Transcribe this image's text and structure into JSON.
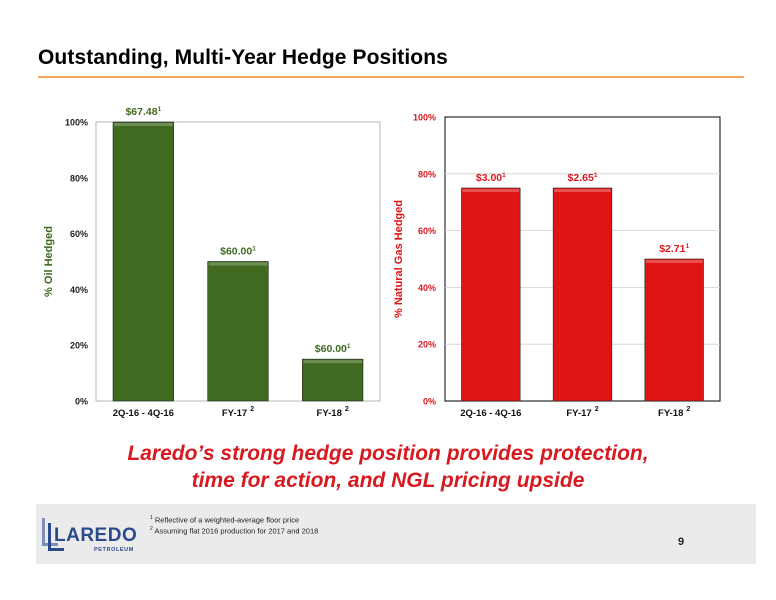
{
  "title": "Outstanding, Multi-Year Hedge Positions",
  "tagline": {
    "line1": "Laredo’s strong hedge position provides protection,",
    "line2": "time for action, and NGL pricing upside"
  },
  "footnotes": [
    {
      "mark": "1",
      "text": "Reflective of a weighted-average floor price"
    },
    {
      "mark": "2",
      "text": "Assuming flat 2016 production for 2017 and 2018"
    }
  ],
  "page_number": "9",
  "logo": {
    "name": "LAREDO",
    "sub": "PETROLEUM"
  },
  "colors": {
    "oil": "#3f6a1f",
    "gas": "#e01414",
    "accent_rule": "#f5a65b",
    "tagline": "#d71920"
  },
  "chart_data": [
    {
      "type": "bar",
      "ylabel": "% Oil Hedged",
      "ylim": [
        0,
        100
      ],
      "yticks": [
        "0%",
        "20%",
        "40%",
        "60%",
        "80%",
        "100%"
      ],
      "categories": [
        "2Q-16 - 4Q-16",
        "FY-17",
        "FY-18"
      ],
      "category_marks": [
        "",
        "2",
        "2"
      ],
      "values": [
        100,
        50,
        15
      ],
      "data_labels": [
        "$67.48",
        "$60.00",
        "$60.00"
      ],
      "label_marks": [
        "1",
        "1",
        "1"
      ],
      "color": "#3f6a1f",
      "label_color": "#3f6a1f",
      "grid": false
    },
    {
      "type": "bar",
      "ylabel": "% Natural Gas Hedged",
      "ylim": [
        0,
        100
      ],
      "yticks": [
        "0%",
        "20%",
        "40%",
        "60%",
        "80%",
        "100%"
      ],
      "categories": [
        "2Q-16 - 4Q-16",
        "FY-17",
        "FY-18"
      ],
      "category_marks": [
        "",
        "2",
        "2"
      ],
      "values": [
        75,
        75,
        50
      ],
      "data_labels": [
        "$3.00",
        "$2.65",
        "$2.71"
      ],
      "label_marks": [
        "1",
        "1",
        "1"
      ],
      "color": "#e01414",
      "label_color": "#d71920",
      "grid": true
    }
  ]
}
